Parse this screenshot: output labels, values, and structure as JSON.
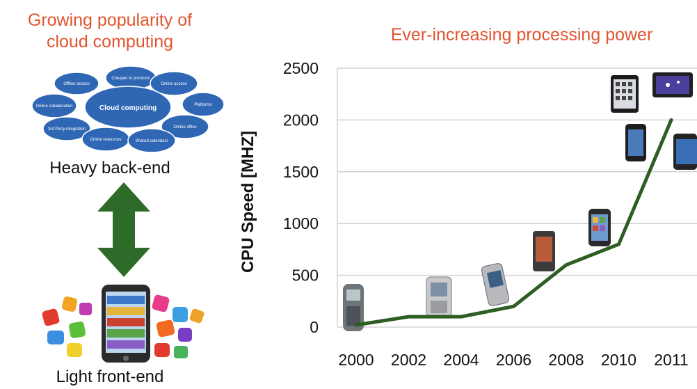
{
  "left_panel": {
    "title_lines": [
      "Growing popularity of",
      "cloud computing"
    ],
    "cloud_center_label": "Cloud computing",
    "cloud_labels": [
      "Offline access",
      "Cheaper to provision",
      "Online access",
      "Online collaboration",
      "Platforms",
      "3rd Party integration",
      "Online office",
      "Online resources",
      "Shared calendars"
    ],
    "backend_label": "Heavy back-end",
    "frontend_label": "Light front-end",
    "arrow_color": "#2e6b28",
    "cloud_color": "#2f67b4"
  },
  "chart_data": {
    "type": "line",
    "title": "Ever-increasing processing power",
    "ylabel": "CPU Speed [MHZ]",
    "xlabel": "",
    "categories": [
      "2000",
      "2002",
      "2004",
      "2006",
      "2008",
      "2010",
      "2011"
    ],
    "x": [
      2000,
      2002,
      2004,
      2006,
      2008,
      2010,
      2011
    ],
    "values": [
      20,
      100,
      100,
      200,
      600,
      800,
      2000
    ],
    "yticks": [
      0,
      500,
      1000,
      1500,
      2000,
      2500
    ],
    "ylim": [
      0,
      2500
    ],
    "grid": true,
    "line_color": "#2e5e22",
    "device_icons": [
      "phone-2000-icon",
      "flip-phone-2003-icon",
      "pda-phone-2005-icon",
      "slider-phone-2007-icon",
      "smartphone-2009-icon",
      "smartphone-2010-icon",
      "tablet-2010-icon",
      "tablet-2011-icon",
      "smartphone-2011-icon"
    ]
  }
}
